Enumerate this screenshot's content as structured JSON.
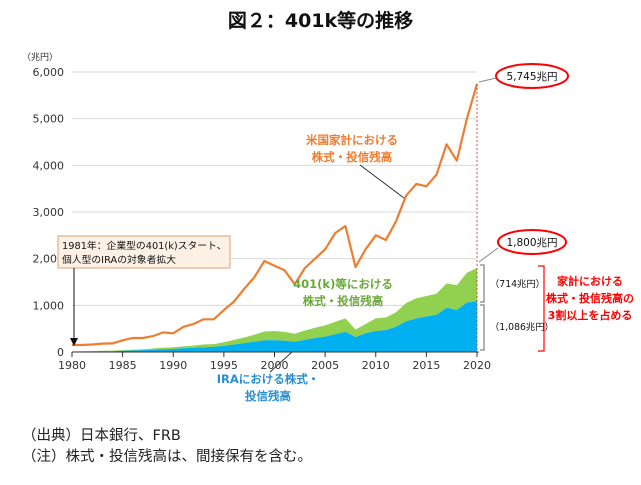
{
  "figure_title": "図２：401k等の推移",
  "notes": [
    "（出典）日本銀行、FRB",
    "（注）株式・投信残高は、間接保有を含む。"
  ],
  "colors": {
    "household": "#ed7d31",
    "k401": "#92d050",
    "ira": "#00b0f0",
    "highlight": "#ff0000",
    "annotation_text": "#ed7d31",
    "k401_text": "#6aa83a",
    "ira_text": "#2a8fd0"
  },
  "chart_data": {
    "type": "line",
    "title": "",
    "ylabel": "（兆円）",
    "xlabel": "",
    "xlim": [
      1980,
      2020
    ],
    "ylim": [
      0,
      6000
    ],
    "xticks": [
      1980,
      1985,
      1990,
      1995,
      2000,
      2005,
      2010,
      2015,
      2020
    ],
    "yticks": [
      0,
      1000,
      2000,
      3000,
      4000,
      5000,
      6000
    ],
    "ytick_labels": [
      "0",
      "1,000",
      "2,000",
      "3,000",
      "4,000",
      "5,000",
      "6,000"
    ],
    "x": [
      1980,
      1981,
      1982,
      1983,
      1984,
      1985,
      1986,
      1987,
      1988,
      1989,
      1990,
      1991,
      1992,
      1993,
      1994,
      1995,
      1996,
      1997,
      1998,
      1999,
      2000,
      2001,
      2002,
      2003,
      2004,
      2005,
      2006,
      2007,
      2008,
      2009,
      2010,
      2011,
      2012,
      2013,
      2014,
      2015,
      2016,
      2017,
      2018,
      2019,
      2020
    ],
    "series": [
      {
        "name": "米国家計における株式・投信残高",
        "kind": "line",
        "values": [
          150,
          150,
          160,
          180,
          185,
          250,
          300,
          300,
          340,
          420,
          400,
          540,
          600,
          700,
          700,
          900,
          1080,
          1350,
          1600,
          1950,
          1850,
          1750,
          1450,
          1800,
          2000,
          2200,
          2550,
          2700,
          1820,
          2200,
          2500,
          2400,
          2800,
          3350,
          3600,
          3550,
          3800,
          4450,
          4100,
          5000,
          5745
        ]
      },
      {
        "name": "401(k)等",
        "kind": "area_total",
        "values": [
          10,
          15,
          20,
          25,
          30,
          40,
          50,
          60,
          75,
          90,
          100,
          120,
          140,
          160,
          170,
          210,
          260,
          310,
          370,
          440,
          450,
          430,
          390,
          460,
          520,
          570,
          650,
          720,
          480,
          600,
          720,
          740,
          850,
          1050,
          1150,
          1200,
          1250,
          1470,
          1430,
          1700,
          1800
        ]
      },
      {
        "name": "IRA",
        "kind": "area",
        "values": [
          5,
          8,
          10,
          15,
          18,
          25,
          32,
          40,
          50,
          60,
          65,
          80,
          90,
          100,
          110,
          130,
          160,
          190,
          220,
          250,
          250,
          240,
          220,
          260,
          300,
          330,
          380,
          430,
          320,
          400,
          450,
          470,
          540,
          660,
          720,
          760,
          800,
          950,
          900,
          1060,
          1086
        ]
      }
    ],
    "annotations": {
      "household_label": [
        "米国家計における",
        "株式・投信残高"
      ],
      "k401_label": [
        "401(k)等における",
        "株式・投信残高"
      ],
      "ira_label": [
        "IRAにおける株式・",
        "投信残高"
      ],
      "start_note": [
        "1981年：企業型の401(k)スタート、",
        "個人型のIRAの対象者拡大"
      ],
      "total_callout": "5,745兆円",
      "retirement_callout": "1,800兆円",
      "k401_only_value": "（714兆円）",
      "ira_value": "（1,086兆円）",
      "share_note": [
        "家計における",
        "株式・投信残高の",
        "3割以上を占める"
      ]
    }
  }
}
